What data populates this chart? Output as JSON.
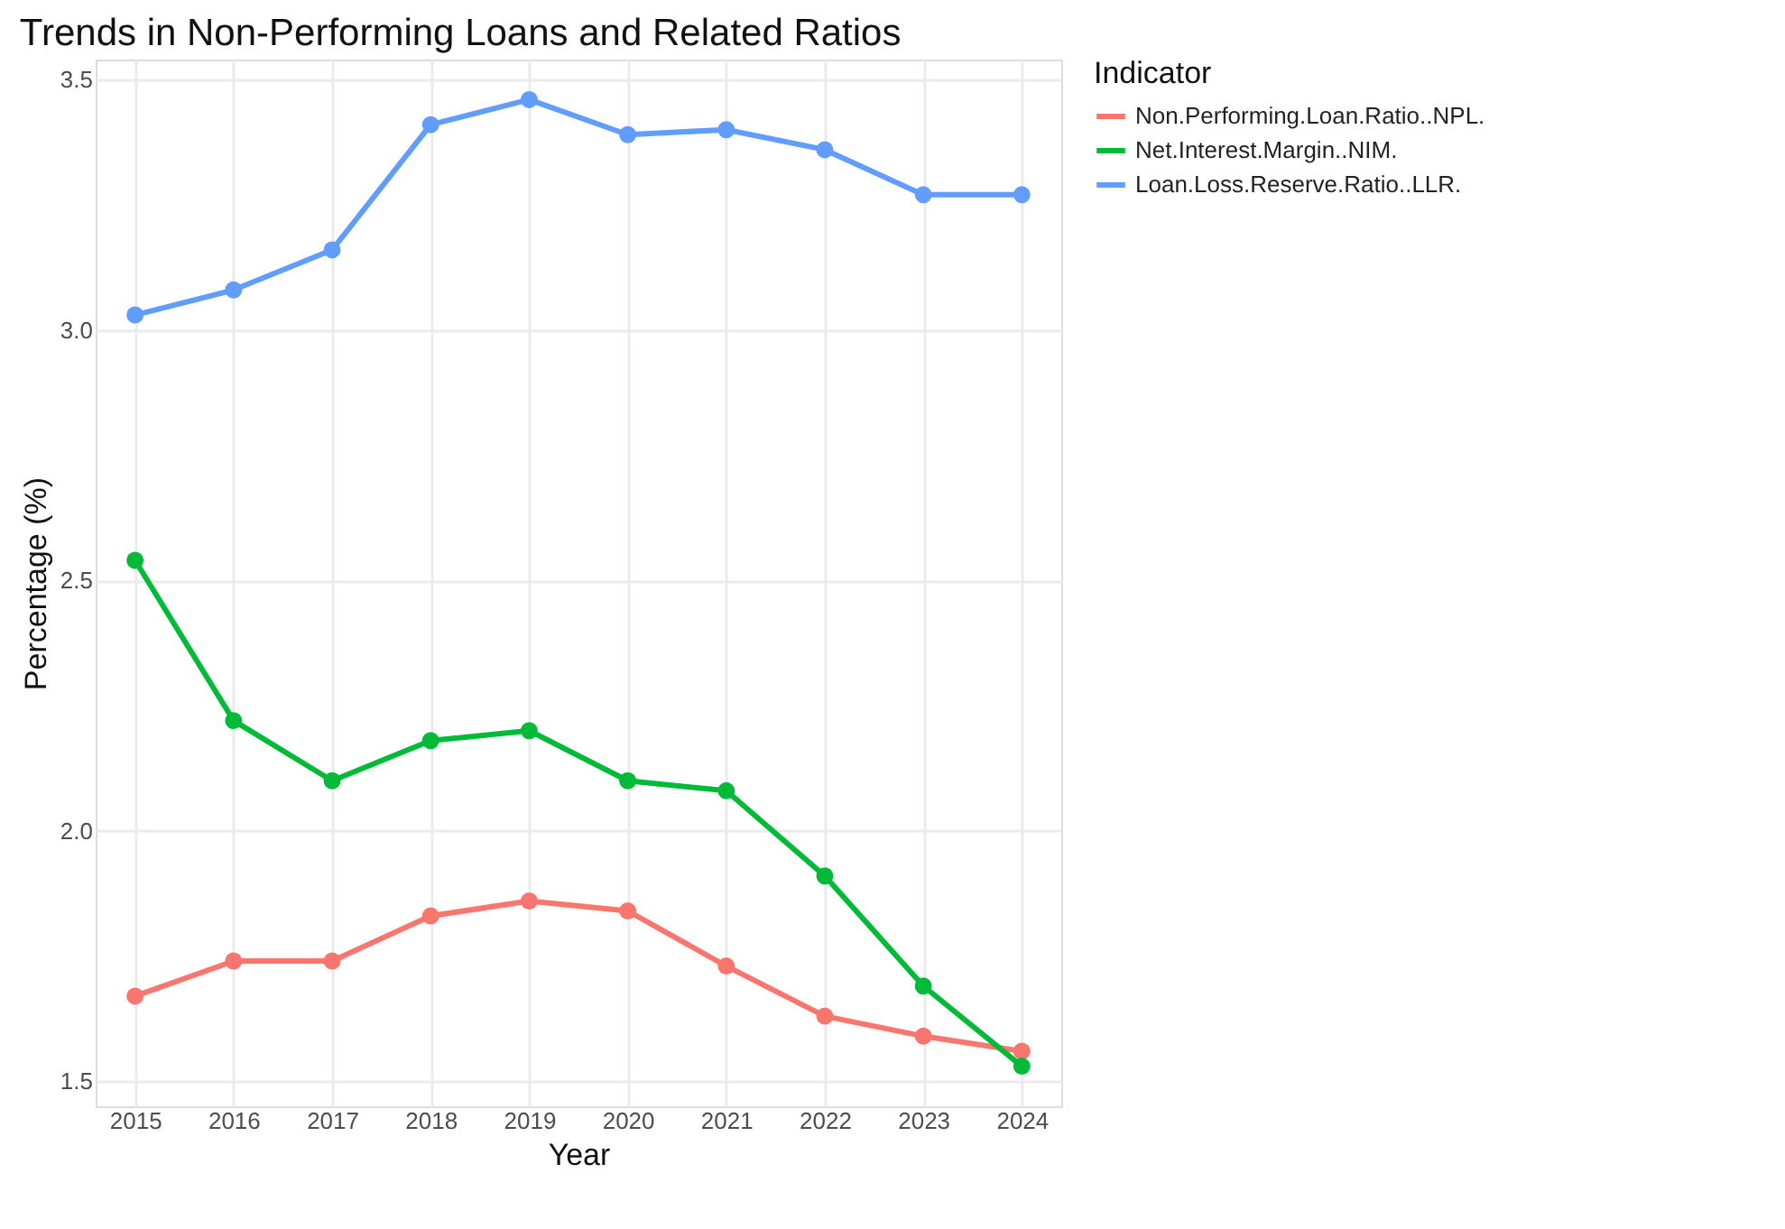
{
  "chart_data": {
    "type": "line",
    "title": "Trends in Non-Performing Loans and Related Ratios",
    "xlabel": "Year",
    "ylabel": "Percentage (%)",
    "legend_title": "Indicator",
    "x": [
      2015,
      2016,
      2017,
      2018,
      2019,
      2020,
      2021,
      2022,
      2023,
      2024
    ],
    "series": [
      {
        "name": "Non.Performing.Loan.Ratio..NPL.",
        "color": "#f8766d",
        "values": [
          1.67,
          1.74,
          1.74,
          1.83,
          1.86,
          1.84,
          1.73,
          1.63,
          1.59,
          1.56
        ]
      },
      {
        "name": "Net.Interest.Margin..NIM.",
        "color": "#00ba38",
        "values": [
          2.54,
          2.22,
          2.1,
          2.18,
          2.2,
          2.1,
          2.08,
          1.91,
          1.69,
          1.53
        ]
      },
      {
        "name": "Loan.Loss.Reserve.Ratio..LLR.",
        "color": "#619cff",
        "values": [
          3.03,
          3.08,
          3.16,
          3.41,
          3.46,
          3.39,
          3.4,
          3.36,
          3.27,
          3.27
        ]
      }
    ],
    "xlim": [
      2014.6,
      2024.4
    ],
    "xticks": [
      2015,
      2016,
      2017,
      2018,
      2019,
      2020,
      2021,
      2022,
      2023,
      2024
    ],
    "ylim": [
      1.45,
      3.54
    ],
    "yticks": [
      1.5,
      {
        "value": 2,
        "label": "2.0"
      },
      2.5,
      {
        "value": 3,
        "label": "3.0"
      },
      3.5
    ],
    "grid": true,
    "legend": "right",
    "marker": "circle",
    "line_style": "solid"
  }
}
